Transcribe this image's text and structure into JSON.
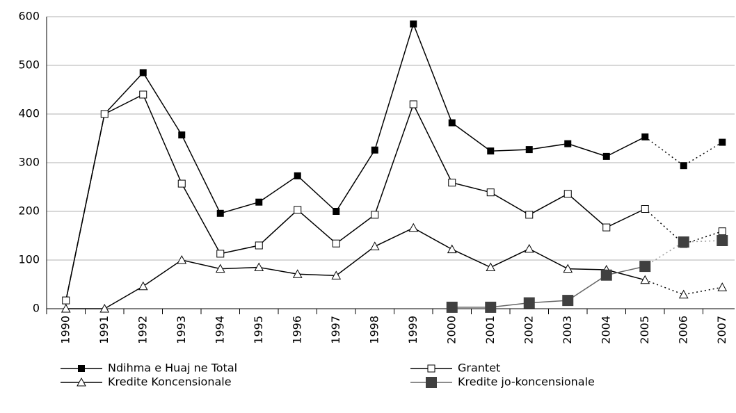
{
  "chart_data": {
    "type": "line",
    "categories": [
      "1990",
      "1991",
      "1992",
      "1993",
      "1994",
      "1995",
      "1996",
      "1997",
      "1998",
      "1999",
      "2000",
      "2001",
      "2002",
      "2003",
      "2004",
      "2005",
      "2006",
      "2007"
    ],
    "ylim": [
      0,
      600
    ],
    "yticks": [
      0,
      100,
      200,
      300,
      400,
      500,
      600
    ],
    "grid": true,
    "dotted_from": "2005",
    "legend": "bottom",
    "series": [
      {
        "name": "Ndihma e Huaj ne Total",
        "color": "#000000",
        "marker": "square-filled",
        "values": [
          17,
          400,
          485,
          357,
          196,
          219,
          273,
          200,
          326,
          585,
          382,
          324,
          327,
          339,
          313,
          353,
          294,
          342
        ]
      },
      {
        "name": "Grantet",
        "color": "#000000",
        "marker": "square-open",
        "values": [
          17,
          400,
          440,
          257,
          113,
          130,
          203,
          134,
          193,
          420,
          259,
          239,
          193,
          236,
          167,
          205,
          133,
          159
        ]
      },
      {
        "name": "Kredite Koncensionale",
        "color": "#000000",
        "marker": "triangle-open",
        "values": [
          0,
          0,
          46,
          100,
          82,
          85,
          71,
          68,
          128,
          166,
          122,
          85,
          123,
          82,
          80,
          59,
          29,
          44
        ]
      },
      {
        "name": "Kredite jo-koncensionale",
        "color": "#404040",
        "marker": "square-big",
        "values": [
          null,
          null,
          null,
          null,
          null,
          null,
          null,
          null,
          null,
          null,
          3,
          3,
          12,
          17,
          69,
          87,
          137,
          140
        ]
      }
    ]
  }
}
